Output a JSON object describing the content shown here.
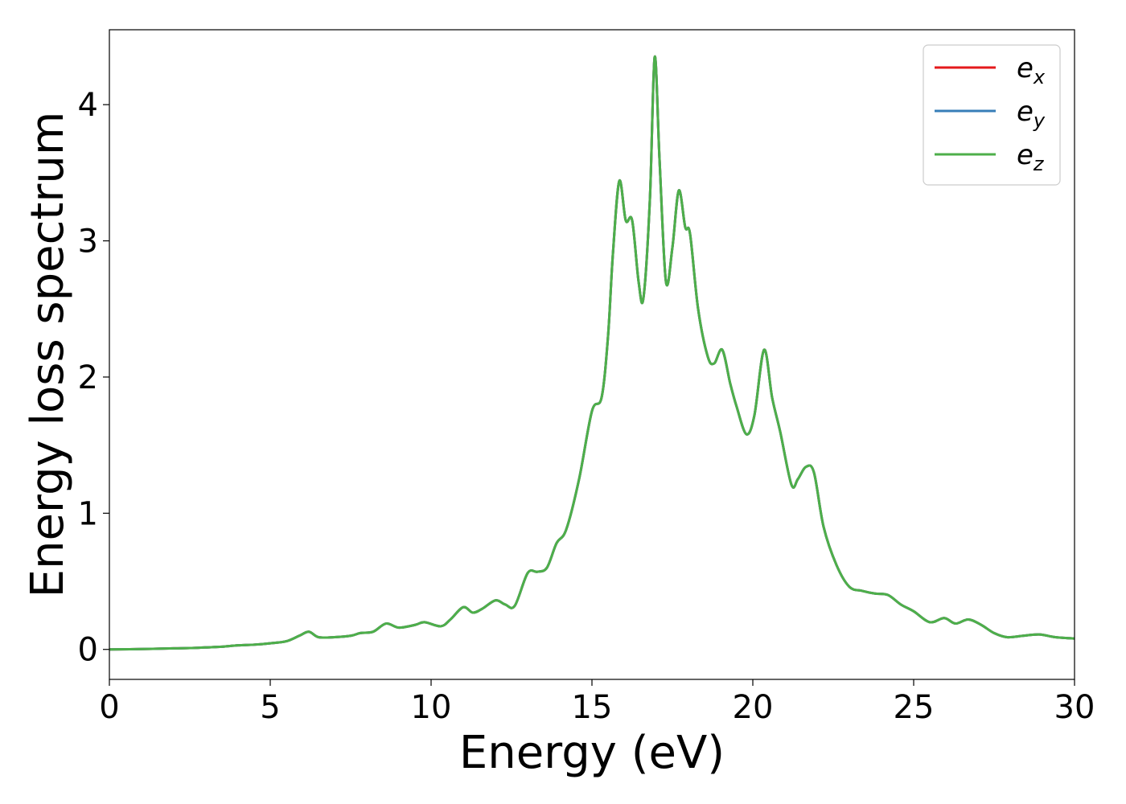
{
  "chart_data": {
    "type": "line",
    "xlabel": "Energy (eV)",
    "ylabel": "Energy loss spectrum",
    "xlim": [
      0,
      30
    ],
    "ylim": [
      -0.22,
      4.55
    ],
    "xticks": [
      "0",
      "5",
      "10",
      "15",
      "20",
      "25",
      "30"
    ],
    "yticks": [
      "0",
      "1",
      "2",
      "3",
      "4"
    ],
    "grid": false,
    "legend_position": "top-right",
    "x": [
      0,
      1,
      2,
      2.5,
      3,
      3.5,
      4,
      4.5,
      5,
      5.5,
      5.9,
      6.2,
      6.5,
      7,
      7.5,
      7.8,
      8.2,
      8.6,
      9,
      9.5,
      9.8,
      10.3,
      10.6,
      11,
      11.3,
      11.6,
      12,
      12.3,
      12.6,
      13,
      13.3,
      13.6,
      13.9,
      14.2,
      14.6,
      15,
      15.3,
      15.5,
      15.65,
      15.85,
      16.05,
      16.25,
      16.45,
      16.6,
      16.8,
      16.95,
      17.1,
      17.3,
      17.5,
      17.7,
      17.9,
      18.05,
      18.3,
      18.6,
      18.8,
      19.05,
      19.3,
      19.5,
      19.8,
      20.05,
      20.35,
      20.6,
      20.85,
      21.2,
      21.4,
      21.65,
      21.9,
      22.2,
      22.6,
      23,
      23.4,
      23.8,
      24.2,
      24.6,
      25,
      25.5,
      25.95,
      26.3,
      26.7,
      27.1,
      27.5,
      27.9,
      28.4,
      28.9,
      29.4,
      30
    ],
    "series": [
      {
        "name": "e",
        "subscript": "x",
        "color": "#e41a1c",
        "values": [
          0,
          0.003,
          0.008,
          0.01,
          0.015,
          0.02,
          0.03,
          0.035,
          0.045,
          0.06,
          0.1,
          0.13,
          0.09,
          0.09,
          0.1,
          0.12,
          0.13,
          0.19,
          0.16,
          0.18,
          0.2,
          0.17,
          0.22,
          0.31,
          0.27,
          0.3,
          0.36,
          0.33,
          0.32,
          0.56,
          0.57,
          0.6,
          0.78,
          0.88,
          1.25,
          1.75,
          1.85,
          2.3,
          2.9,
          3.44,
          3.15,
          3.15,
          2.7,
          2.58,
          3.3,
          4.35,
          3.6,
          2.7,
          2.95,
          3.37,
          3.1,
          3.05,
          2.5,
          2.15,
          2.1,
          2.2,
          1.95,
          1.78,
          1.58,
          1.72,
          2.2,
          1.85,
          1.6,
          1.21,
          1.25,
          1.34,
          1.3,
          0.9,
          0.62,
          0.46,
          0.43,
          0.41,
          0.4,
          0.33,
          0.28,
          0.2,
          0.23,
          0.19,
          0.22,
          0.18,
          0.12,
          0.09,
          0.1,
          0.11,
          0.09,
          0.08
        ]
      },
      {
        "name": "e",
        "subscript": "y",
        "color": "#377eb8",
        "values": [
          0,
          0.003,
          0.008,
          0.01,
          0.015,
          0.02,
          0.03,
          0.035,
          0.045,
          0.06,
          0.1,
          0.13,
          0.09,
          0.09,
          0.1,
          0.12,
          0.13,
          0.19,
          0.16,
          0.18,
          0.2,
          0.17,
          0.22,
          0.31,
          0.27,
          0.3,
          0.36,
          0.33,
          0.32,
          0.56,
          0.57,
          0.6,
          0.78,
          0.88,
          1.25,
          1.75,
          1.85,
          2.3,
          2.9,
          3.44,
          3.15,
          3.15,
          2.7,
          2.58,
          3.3,
          4.35,
          3.6,
          2.7,
          2.95,
          3.37,
          3.1,
          3.05,
          2.5,
          2.15,
          2.1,
          2.2,
          1.95,
          1.78,
          1.58,
          1.72,
          2.2,
          1.85,
          1.6,
          1.21,
          1.25,
          1.34,
          1.3,
          0.9,
          0.62,
          0.46,
          0.43,
          0.41,
          0.4,
          0.33,
          0.28,
          0.2,
          0.23,
          0.19,
          0.22,
          0.18,
          0.12,
          0.09,
          0.1,
          0.11,
          0.09,
          0.08
        ]
      },
      {
        "name": "e",
        "subscript": "z",
        "color": "#4daf4a",
        "values": [
          0,
          0.003,
          0.008,
          0.01,
          0.015,
          0.02,
          0.03,
          0.035,
          0.045,
          0.06,
          0.1,
          0.13,
          0.09,
          0.09,
          0.1,
          0.12,
          0.13,
          0.19,
          0.16,
          0.18,
          0.2,
          0.17,
          0.22,
          0.31,
          0.27,
          0.3,
          0.36,
          0.33,
          0.32,
          0.56,
          0.57,
          0.6,
          0.78,
          0.88,
          1.25,
          1.75,
          1.85,
          2.3,
          2.9,
          3.44,
          3.15,
          3.15,
          2.7,
          2.58,
          3.3,
          4.35,
          3.6,
          2.7,
          2.95,
          3.37,
          3.1,
          3.05,
          2.5,
          2.15,
          2.1,
          2.2,
          1.95,
          1.78,
          1.58,
          1.72,
          2.2,
          1.85,
          1.6,
          1.21,
          1.25,
          1.34,
          1.3,
          0.9,
          0.62,
          0.46,
          0.43,
          0.41,
          0.4,
          0.33,
          0.28,
          0.2,
          0.23,
          0.19,
          0.22,
          0.18,
          0.12,
          0.09,
          0.1,
          0.11,
          0.09,
          0.08
        ]
      }
    ]
  }
}
